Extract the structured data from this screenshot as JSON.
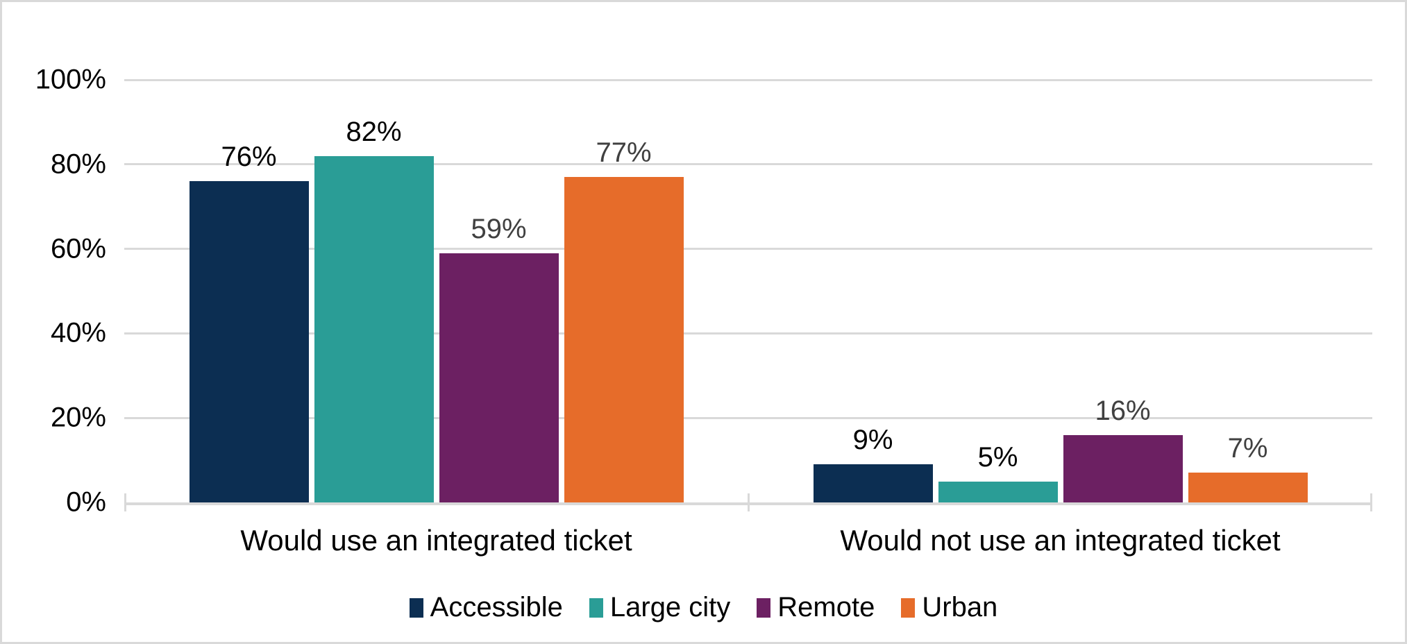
{
  "chart_data": {
    "type": "bar",
    "categories": [
      "Would use an integrated ticket",
      "Would not use an integrated ticket"
    ],
    "series": [
      {
        "name": "Accessible",
        "color": "#0c2e52",
        "label_color": "#000000",
        "values": [
          76,
          9
        ]
      },
      {
        "name": "Large city",
        "color": "#2a9d96",
        "label_color": "#000000",
        "values": [
          82,
          5
        ]
      },
      {
        "name": "Remote",
        "color": "#6c2062",
        "label_color": "#404040",
        "values": [
          59,
          16
        ]
      },
      {
        "name": "Urban",
        "color": "#e66c2a",
        "label_color": "#404040",
        "values": [
          77,
          7
        ]
      }
    ],
    "value_suffix": "%",
    "title": "",
    "xlabel": "",
    "ylabel": "",
    "ylim": [
      0,
      100
    ],
    "yticks": [
      0,
      20,
      40,
      60,
      80,
      100
    ],
    "ytick_labels": [
      "0%",
      "20%",
      "40%",
      "60%",
      "80%",
      "100%"
    ],
    "grid": "horizontal",
    "gridline_color": "#d9d9d9",
    "axis_color": "#d9d9d9",
    "data_labels": true,
    "legend_position": "bottom"
  },
  "styles": {
    "background_color": "#ffffff",
    "border_color": "#d9d9d9",
    "axis_text_color": "#000000",
    "category_text_color": "#000000"
  }
}
